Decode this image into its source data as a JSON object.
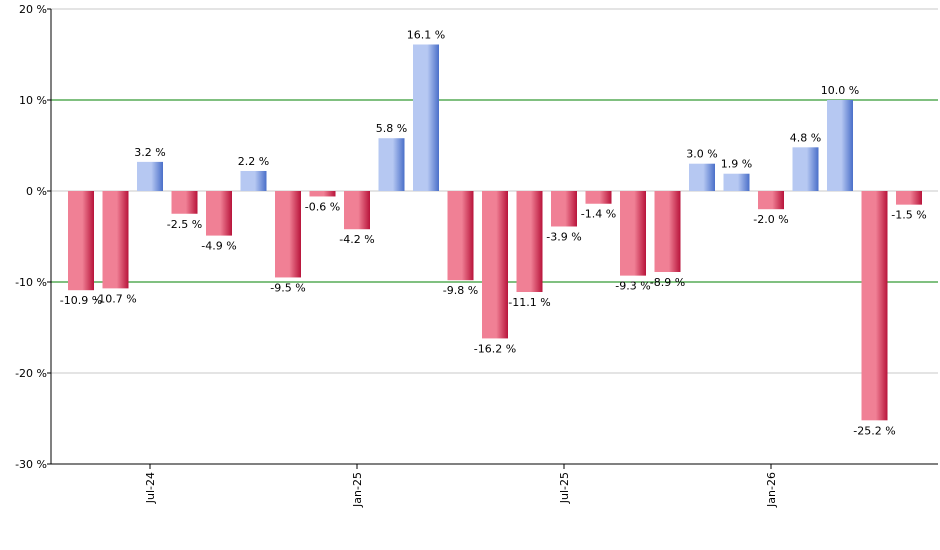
{
  "chart_data": {
    "type": "bar",
    "title": "",
    "xlabel": "",
    "ylabel": "",
    "ylim": [
      -30,
      20
    ],
    "y_ticks": [
      20,
      10,
      0,
      -10,
      -20,
      -30
    ],
    "y_tick_labels": [
      "20 %",
      "10 %",
      "0 %",
      "-10 %",
      "-20 %",
      "-30 %"
    ],
    "x_tick_labels": [
      {
        "label": "Jul-24",
        "index": 2
      },
      {
        "label": "Jan-25",
        "index": 8
      },
      {
        "label": "Jul-25",
        "index": 14
      },
      {
        "label": "Jan-26",
        "index": 20
      }
    ],
    "reference_lines": [
      10,
      -10
    ],
    "grid": true,
    "values": [
      -10.9,
      -10.7,
      3.2,
      -2.5,
      -4.9,
      2.2,
      -9.5,
      -0.6,
      -4.2,
      5.8,
      16.1,
      -9.8,
      -16.2,
      -11.1,
      -3.9,
      -1.4,
      -9.3,
      -8.9,
      3.0,
      1.9,
      -2.0,
      4.8,
      10.0,
      -25.2,
      -1.5
    ],
    "labels": [
      "-10.9 %",
      "-10.7 %",
      "3.2 %",
      "-2.5 %",
      "-4.9 %",
      "2.2 %",
      "-9.5 %",
      "-0.6 %",
      "-4.2 %",
      "5.8 %",
      "16.1 %",
      "-9.8 %",
      "-16.2 %",
      "-11.1 %",
      "-3.9 %",
      "-1.4 %",
      "-9.3 %",
      "-8.9 %",
      "3.0 %",
      "1.9 %",
      "-2.0 %",
      "4.8 %",
      "10.0 %",
      "-25.2 %",
      "-1.5 %"
    ],
    "colors": {
      "positive_light": "#b6c8f2",
      "positive_dark": "#4a6fc9",
      "negative_light": "#f08095",
      "negative_dark": "#b8133a",
      "reference_line": "#008000",
      "gridline": "#c8c8c8",
      "axis": "#000000"
    }
  }
}
